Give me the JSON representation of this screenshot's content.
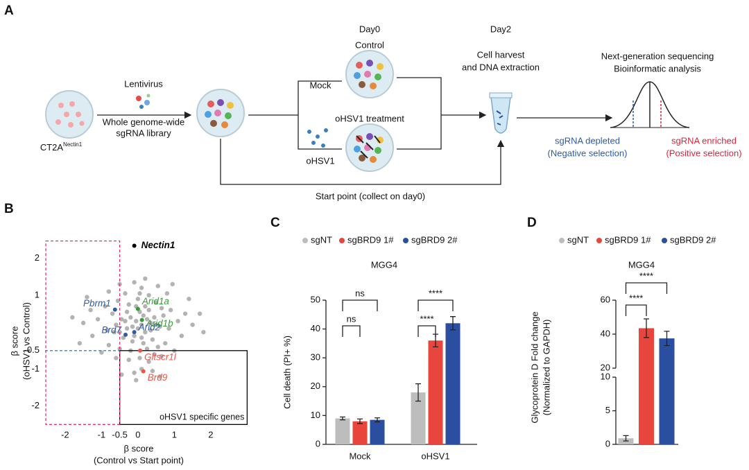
{
  "panel_labels": [
    "A",
    "B",
    "C",
    "D"
  ],
  "diagram": {
    "cell_line": "CT2A",
    "cell_line_sup": "Nectin1",
    "lentivirus": "Lentivirus",
    "library": [
      "Whole genome-wide",
      "sgRNA library"
    ],
    "day0": "Day0",
    "control": "Control",
    "mock": "Mock",
    "treatment": "oHSV1 treatment",
    "ohsv1": "oHSV1",
    "day2": "Day2",
    "harvest": [
      "Cell harvest",
      "and DNA extraction"
    ],
    "sequencing": [
      "Next-generation sequencing",
      "Bioinformatic analysis"
    ],
    "depleted": [
      "sgRNA depleted",
      "(Negative selection)"
    ],
    "enriched": [
      "sgRNA enriched",
      "(Positive selection)"
    ],
    "start_point": "Start point (collect on day0)"
  },
  "chart_data": [
    {
      "type": "scatter",
      "x_label": [
        "β score",
        "(Control vs Start point)"
      ],
      "y_label": [
        "β score",
        "(oHSV1 vs Control)"
      ],
      "xlim": [
        -2.55,
        3.05
      ],
      "ylim": [
        -2.55,
        2.5
      ],
      "xticks": [
        -2,
        -1,
        -0.5,
        0,
        1,
        2
      ],
      "yticks": [
        2,
        1,
        -0.5,
        -1,
        -2
      ],
      "series": [
        {
          "color": "#b3b3b3",
          "x": [
            -0.05,
            0.1,
            -0.2,
            0.25,
            -0.3,
            0.35,
            -0.1,
            0.05,
            0.2,
            -0.25,
            0.45,
            -0.45,
            0.6,
            -0.6,
            0.15,
            -0.15,
            0.4,
            -0.4,
            0.7,
            -0.7,
            0.0,
            0.3,
            -0.35,
            0.1,
            -0.1,
            0.5,
            -0.55,
            0.85,
            -0.85,
            0.9,
            -0.9,
            1.1,
            -1.1,
            0.25,
            -0.2,
            0.55,
            -0.5,
            0.05,
            0.3,
            -0.25,
            0.65,
            -0.6,
            0.1,
            -0.1,
            0.4,
            1.3,
            -1.3,
            1.2,
            -1.25,
            1.5,
            -1.5,
            0.8,
            -0.8,
            0.55,
            -0.5,
            0.2,
            0.75,
            -0.8,
            1.0,
            -1.0,
            0.0,
            0.15,
            -0.15,
            0.3,
            -0.3,
            0.5,
            -0.5,
            0.2,
            -0.05,
            0.1,
            1.4,
            -1.4,
            1.7,
            -1.6,
            0.95,
            -0.05,
            0.6,
            -0.45,
            1.8,
            -1.8,
            0.35,
            -0.35,
            0.65,
            -0.65,
            0.05,
            0.45
          ],
          "values": [
            0.3,
            0.2,
            0.4,
            0.35,
            0.1,
            0.05,
            -0.1,
            0.55,
            0.7,
            0.75,
            0.4,
            0.35,
            0.15,
            0.2,
            -0.3,
            -0.25,
            -0.2,
            -0.15,
            0.45,
            0.5,
            0.9,
            1.0,
            1.05,
            1.2,
            1.35,
            0.8,
            0.85,
            0.1,
            0.05,
            0.6,
            0.7,
            0.3,
            0.35,
            -0.45,
            -0.5,
            -0.4,
            -0.45,
            -0.7,
            -0.8,
            -0.75,
            -0.65,
            -0.7,
            -1.0,
            -1.1,
            -1.05,
            0.5,
            0.6,
            -0.1,
            -0.1,
            0.2,
            0.25,
            1.05,
            1.1,
            1.25,
            1.3,
            1.45,
            -0.3,
            -0.35,
            -0.5,
            -0.55,
            0.1,
            0.45,
            0.15,
            0.6,
            0.55,
            0.2,
            0.0,
            0.0,
            0.7,
            -0.15,
            0.9,
            0.95,
            0.5,
            -0.3,
            1.3,
            -1.3,
            -1.2,
            -1.15,
            0.0,
            0.4,
            0.25,
            0.3,
            0.65,
            0.0,
            1.05,
            -0.6
          ]
        }
      ],
      "highlights": [
        {
          "label": "Nectin1",
          "x": -0.1,
          "y": 2.34,
          "color": "#000000"
        },
        {
          "label": "Pbrm1",
          "x": -0.63,
          "y": 0.61,
          "color": "#2f5aa8"
        },
        {
          "label": "Arid1a",
          "x": 0.0,
          "y": 0.63,
          "color": "#3a9a3a"
        },
        {
          "label": "Arid1b",
          "x": 0.11,
          "y": 0.33,
          "color": "#3a9a3a"
        },
        {
          "label": "Brd7",
          "x": -0.34,
          "y": -0.07,
          "color": "#2f5aa8"
        },
        {
          "label": "Arid2",
          "x": -0.1,
          "y": 0.0,
          "color": "#2f5aa8"
        },
        {
          "label": "Gltscr1l",
          "x": 0.06,
          "y": -0.5,
          "color": "#e8574a"
        },
        {
          "label": "Brd9",
          "x": 0.15,
          "y": -1.06,
          "color": "#e8574a"
        }
      ],
      "regions": [
        {
          "label": "oHSV1 specific genes",
          "xlim": [
            -0.5,
            3.0
          ],
          "ylim": [
            -2.5,
            -0.5
          ],
          "color": "#000000",
          "dashed": false
        },
        {
          "xlim": [
            -2.53,
            -0.5
          ],
          "ylim": [
            -2.5,
            2.47
          ],
          "color": "#e0307a",
          "dashed": true
        }
      ],
      "threshold_lines": [
        {
          "y": -0.5,
          "xlim": [
            -2.55,
            -0.5
          ],
          "color": "#3a7fc4"
        }
      ]
    },
    {
      "type": "bar",
      "title": "MGG4",
      "y_label": [
        "Cell death (PI+ %)"
      ],
      "categories": [
        "Mock",
        "oHSV1"
      ],
      "series": [
        {
          "name": "sgNT",
          "color": "#bdbdbd",
          "values": [
            9,
            18
          ],
          "errors": [
            0.5,
            3
          ]
        },
        {
          "name": "sgBRD9 1#",
          "color": "#e8453c",
          "values": [
            8,
            36
          ],
          "errors": [
            0.8,
            2.2
          ]
        },
        {
          "name": "sgBRD9 2#",
          "color": "#2a4ea0",
          "values": [
            8.5,
            42
          ],
          "errors": [
            0.7,
            2.3
          ]
        }
      ],
      "ylim": [
        0,
        50
      ],
      "yticks": [
        0,
        10,
        20,
        30,
        40,
        50
      ],
      "legend": "top",
      "significance": [
        {
          "category": 0,
          "pair": [
            0,
            1
          ],
          "label": "ns"
        },
        {
          "category": 0,
          "pair": [
            0,
            2
          ],
          "label": "ns"
        },
        {
          "category": 1,
          "pair": [
            0,
            1
          ],
          "label": "****"
        },
        {
          "category": 1,
          "pair": [
            0,
            2
          ],
          "label": "****"
        }
      ]
    },
    {
      "type": "bar",
      "title": "MGG4",
      "y_label": [
        "Glycoprotein D Fold change",
        "(Normalized to GAPDH)"
      ],
      "categories": [
        null
      ],
      "series": [
        {
          "name": "sgNT",
          "color": "#bdbdbd",
          "values": [
            0.9
          ],
          "errors": [
            0.4
          ]
        },
        {
          "name": "sgBRD9 1#",
          "color": "#e8453c",
          "values": [
            43.5
          ],
          "errors": [
            5.5
          ]
        },
        {
          "name": "sgBRD9 2#",
          "color": "#2a4ea0",
          "values": [
            37.5
          ],
          "errors": [
            4.2
          ]
        }
      ],
      "ylim": [
        0,
        60
      ],
      "axis_break": [
        10,
        20
      ],
      "yticks": [
        0,
        5,
        10,
        20,
        40,
        60
      ],
      "legend": "top",
      "significance": [
        {
          "category": 0,
          "pair": [
            0,
            1
          ],
          "label": "****"
        },
        {
          "category": 0,
          "pair": [
            0,
            2
          ],
          "label": "****"
        }
      ]
    }
  ]
}
